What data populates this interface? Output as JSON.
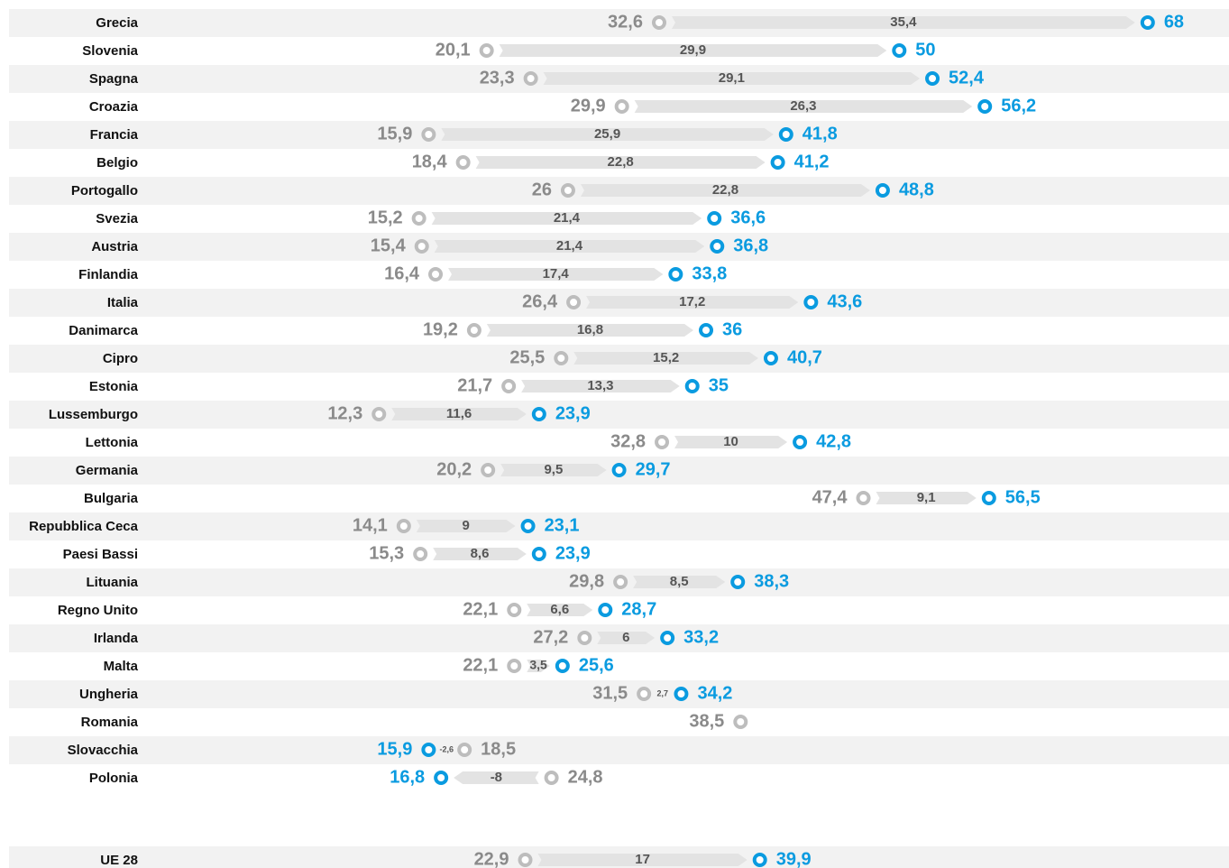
{
  "chart_data": {
    "type": "dumbbell",
    "categories": [
      "Grecia",
      "Slovenia",
      "Spagna",
      "Croazia",
      "Francia",
      "Belgio",
      "Portogallo",
      "Svezia",
      "Austria",
      "Finlandia",
      "Italia",
      "Danimarca",
      "Cipro",
      "Estonia",
      "Lussemburgo",
      "Lettonia",
      "Germania",
      "Bulgaria",
      "Repubblica Ceca",
      "Paesi Bassi",
      "Lituania",
      "Regno Unito",
      "Irlanda",
      "Malta",
      "Ungheria",
      "Romania",
      "Slovacchia",
      "Polonia",
      "UE 28"
    ],
    "xlim": [
      0,
      73.5
    ],
    "series": [
      {
        "color": "#bdbdbd",
        "label_color": "#8a8a8a",
        "values": [
          32.6,
          20.1,
          23.3,
          29.9,
          15.9,
          18.4,
          26,
          15.2,
          15.4,
          16.4,
          26.4,
          19.2,
          25.5,
          21.7,
          12.3,
          32.8,
          20.2,
          47.4,
          14.1,
          15.3,
          29.8,
          22.1,
          27.2,
          22.1,
          31.5,
          38.5,
          18.5,
          24.8,
          22.9
        ],
        "value_labels": [
          "32,6",
          "20,1",
          "23,3",
          "29,9",
          "15,9",
          "18,4",
          "26",
          "15,2",
          "15,4",
          "16,4",
          "26,4",
          "19,2",
          "25,5",
          "21,7",
          "12,3",
          "32,8",
          "20,2",
          "47,4",
          "14,1",
          "15,3",
          "29,8",
          "22,1",
          "27,2",
          "22,1",
          "31,5",
          "38,5",
          "18,5",
          "24,8",
          "22,9"
        ]
      },
      {
        "color": "#0a9be0",
        "label_color": "#0a9be0",
        "values": [
          68,
          50,
          52.4,
          56.2,
          41.8,
          41.2,
          48.8,
          36.6,
          36.8,
          33.8,
          43.6,
          36,
          40.7,
          35,
          23.9,
          42.8,
          29.7,
          56.5,
          23.1,
          23.9,
          38.3,
          28.7,
          33.2,
          25.6,
          34.2,
          null,
          15.9,
          16.8,
          39.9
        ],
        "value_labels": [
          "68",
          "50",
          "52,4",
          "56,2",
          "41,8",
          "41,2",
          "48,8",
          "36,6",
          "36,8",
          "33,8",
          "43,6",
          "36",
          "40,7",
          "35",
          "23,9",
          "42,8",
          "29,7",
          "56,5",
          "23,1",
          "23,9",
          "38,3",
          "28,7",
          "33,2",
          "25,6",
          "34,2",
          null,
          "15,9",
          "16,8",
          "39,9"
        ]
      },
      {
        "color": "#e3e3e3",
        "label_color": "#555555",
        "values": [
          35.4,
          29.9,
          29.1,
          26.3,
          25.9,
          22.8,
          22.8,
          21.4,
          21.4,
          17.4,
          17.2,
          16.8,
          15.2,
          13.3,
          11.6,
          10,
          9.5,
          9.1,
          9,
          8.6,
          8.5,
          6.6,
          6,
          3.5,
          2.7,
          null,
          -2.6,
          -8,
          17
        ],
        "value_labels": [
          "35,4",
          "29,9",
          "29,1",
          "26,3",
          "25,9",
          "22,8",
          "22,8",
          "21,4",
          "21,4",
          "17,4",
          "17,2",
          "16,8",
          "15,2",
          "13,3",
          "11,6",
          "10",
          "9,5",
          "9,1",
          "9",
          "8,6",
          "8,5",
          "6,6",
          "6",
          "3,5",
          "2,7",
          null,
          "-2,6",
          "-8",
          "17"
        ]
      }
    ]
  }
}
